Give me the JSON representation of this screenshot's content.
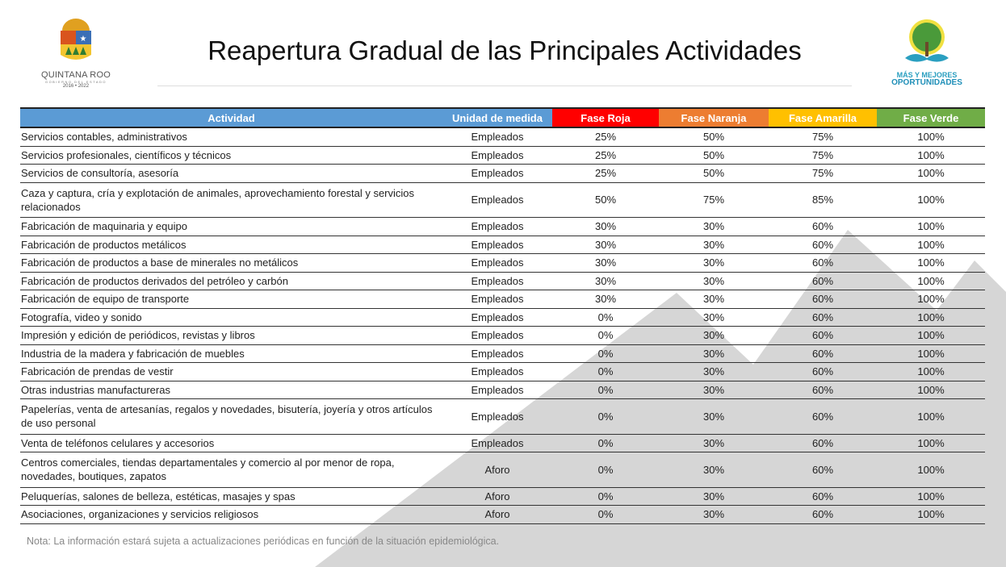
{
  "header": {
    "title": "Reapertura Gradual de las Principales Actividades",
    "left_logo": {
      "name": "QUINTANA ROO",
      "subtitle": "GOBIERNO DEL ESTADO",
      "years": "2016 • 2022"
    },
    "right_logo": {
      "line1": "MÁS Y MEJORES",
      "line2": "OPORTUNIDADES"
    }
  },
  "colors": {
    "actividad": "#5b9bd5",
    "unidad": "#5b9bd5",
    "roja": "#ff0000",
    "naranja": "#ed7d31",
    "amarilla": "#ffc000",
    "verde": "#70ad47"
  },
  "table": {
    "columns": [
      "Actividad",
      "Unidad de medida",
      "Fase Roja",
      "Fase Naranja",
      "Fase Amarilla",
      "Fase Verde"
    ],
    "rows": [
      [
        "Servicios contables, administrativos",
        "Empleados",
        "25%",
        "50%",
        "75%",
        "100%"
      ],
      [
        "Servicios profesionales, científicos y técnicos",
        "Empleados",
        "25%",
        "50%",
        "75%",
        "100%"
      ],
      [
        "Servicios de consultoría, asesoría",
        "Empleados",
        "25%",
        "50%",
        "75%",
        "100%"
      ],
      [
        "Caza y captura, cría y explotación de animales, aprovechamiento forestal y servicios relacionados",
        "Empleados",
        "50%",
        "75%",
        "85%",
        "100%"
      ],
      [
        "Fabricación de maquinaria y equipo",
        "Empleados",
        "30%",
        "30%",
        "60%",
        "100%"
      ],
      [
        "Fabricación de productos metálicos",
        "Empleados",
        "30%",
        "30%",
        "60%",
        "100%"
      ],
      [
        "Fabricación de productos a base de minerales no metálicos",
        "Empleados",
        "30%",
        "30%",
        "60%",
        "100%"
      ],
      [
        "Fabricación de productos derivados del petróleo y carbón",
        "Empleados",
        "30%",
        "30%",
        "60%",
        "100%"
      ],
      [
        "Fabricación de equipo de transporte",
        "Empleados",
        "30%",
        "30%",
        "60%",
        "100%"
      ],
      [
        "Fotografía, video y sonido",
        "Empleados",
        "0%",
        "30%",
        "60%",
        "100%"
      ],
      [
        "Impresión y edición de periódicos, revistas y libros",
        "Empleados",
        "0%",
        "30%",
        "60%",
        "100%"
      ],
      [
        "Industria de la madera y fabricación de muebles",
        "Empleados",
        "0%",
        "30%",
        "60%",
        "100%"
      ],
      [
        "Fabricación de prendas de vestir",
        "Empleados",
        "0%",
        "30%",
        "60%",
        "100%"
      ],
      [
        "Otras industrias manufactureras",
        "Empleados",
        "0%",
        "30%",
        "60%",
        "100%"
      ],
      [
        "Papelerías, venta de artesanías, regalos y novedades, bisutería, joyería y otros artículos de uso personal",
        "Empleados",
        "0%",
        "30%",
        "60%",
        "100%"
      ],
      [
        "Venta de teléfonos celulares y accesorios",
        "Empleados",
        "0%",
        "30%",
        "60%",
        "100%"
      ],
      [
        "Centros comerciales, tiendas departamentales y comercio al por menor de ropa, novedades, boutiques, zapatos",
        "Aforo",
        "0%",
        "30%",
        "60%",
        "100%"
      ],
      [
        "Peluquerías, salones de belleza, estéticas, masajes y spas",
        "Aforo",
        "0%",
        "30%",
        "60%",
        "100%"
      ],
      [
        "Asociaciones, organizaciones y servicios religiosos",
        "Aforo",
        "0%",
        "30%",
        "60%",
        "100%"
      ]
    ]
  },
  "note": "Nota: La información estará sujeta a actualizaciones periódicas en función de la situación epidemiológica."
}
